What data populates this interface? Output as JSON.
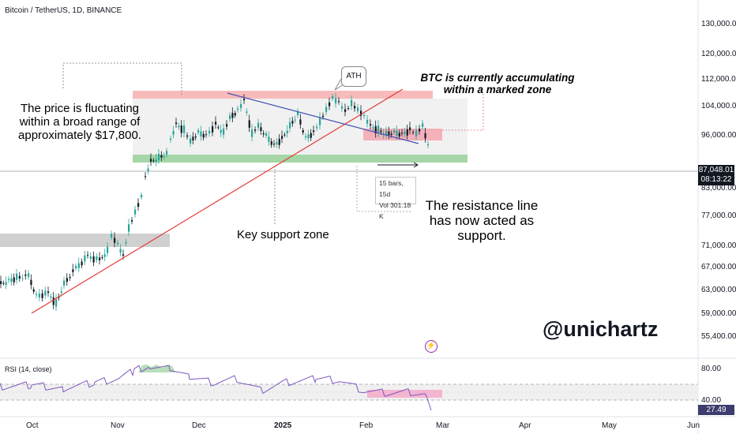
{
  "header": {
    "title": "Bitcoin / TetherUS, 1D, BINANCE"
  },
  "price_axis": [
    "130,000.00",
    "120,000.00",
    "112,000.00",
    "104,000.00",
    "96,000.00",
    "83,000.00",
    "77,000.00",
    "71,000.00",
    "67,000.00",
    "63,000.00",
    "59,000.00",
    "55,400.00"
  ],
  "last_price": {
    "value": "87,048.01",
    "countdown": "08:13:22"
  },
  "time_axis": [
    "Oct",
    "Nov",
    "Dec",
    "2025",
    "Feb",
    "Mar",
    "Apr",
    "May",
    "Jun"
  ],
  "rsi": {
    "label": "RSI (14, close)",
    "levels": [
      "80.00",
      "40.00"
    ],
    "value": "27.49"
  },
  "annotations": {
    "range_note": "The price is fluctuating within a broad range of approximately $17,800.",
    "accumulation_note": "BTC is currently accumulating within a marked zone",
    "support_note": "Key support zone",
    "resistance_note": "The resistance line has now acted as support.",
    "ath_label": "ATH",
    "measure_bars": "15 bars, 15d",
    "measure_vol": "Vol 301.18 K",
    "handle": "@unichartz"
  },
  "colors": {
    "up": "#26a69a",
    "down": "#131722",
    "trendline": "#e53935",
    "downtrend": "#3f51b5",
    "support_zone": "#a5d6a7",
    "resistance_zone": "#f8bbbb",
    "rsi_line": "#7e57c2"
  },
  "icons": {
    "bolt": "lightning-icon"
  }
}
